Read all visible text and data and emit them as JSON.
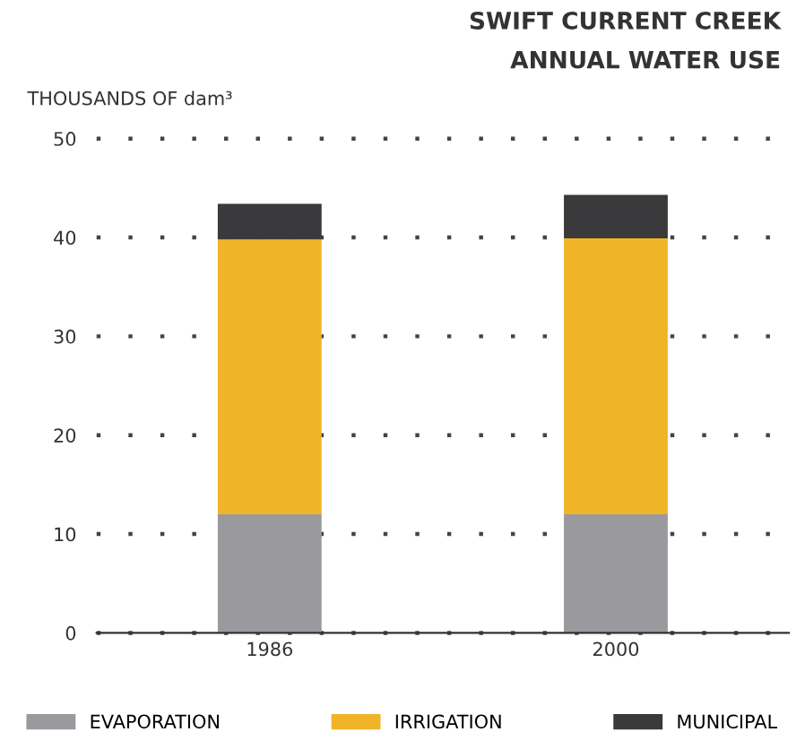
{
  "chart_data": {
    "type": "bar",
    "title": "SWIFT CURRENT CREEK\nANNUAL WATER USE",
    "ylabel": "THOUSANDS OF dam³",
    "categories": [
      "1986",
      "2000"
    ],
    "stacked": true,
    "series": [
      {
        "name": "EVAPORATION",
        "color": "#9a9a9e",
        "values": [
          12,
          12
        ]
      },
      {
        "name": "IRRIGATION",
        "color": "#f0b429",
        "values": [
          27.8,
          27.9
        ]
      },
      {
        "name": "MUNICIPAL",
        "color": "#3a3a3c",
        "values": [
          3.6,
          4.4
        ]
      }
    ],
    "ylim": [
      0,
      50
    ],
    "yticks": [
      0,
      10,
      20,
      30,
      40,
      50
    ],
    "grid": "y",
    "legend": "bottom"
  }
}
